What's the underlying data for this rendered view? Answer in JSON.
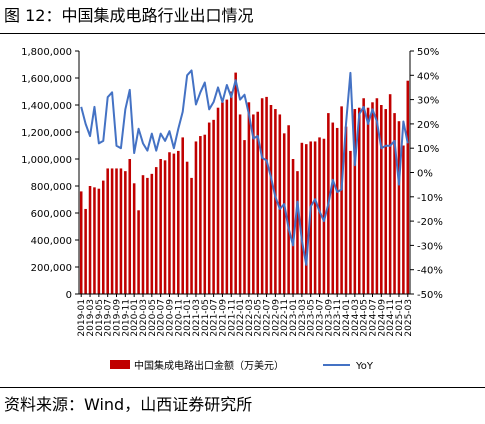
{
  "figure_title": "图 12：中国集成电路行业出口情况",
  "source": "资料来源：Wind，山西证券研究所",
  "colors": {
    "bar": "#c00000",
    "line": "#4472c4",
    "axis": "#000000"
  },
  "chart_data": {
    "type": "bar+line",
    "title": "",
    "x": [
      "2019-01",
      "2019-02",
      "2019-03",
      "2019-04",
      "2019-05",
      "2019-06",
      "2019-07",
      "2019-08",
      "2019-09",
      "2019-10",
      "2019-11",
      "2019-12",
      "2020-01",
      "2020-02",
      "2020-03",
      "2020-04",
      "2020-05",
      "2020-06",
      "2020-07",
      "2020-08",
      "2020-09",
      "2020-10",
      "2020-11",
      "2020-12",
      "2021-01",
      "2021-02",
      "2021-03",
      "2021-04",
      "2021-05",
      "2021-06",
      "2021-07",
      "2021-08",
      "2021-09",
      "2021-10",
      "2021-11",
      "2021-12",
      "2022-01",
      "2022-02",
      "2022-03",
      "2022-04",
      "2022-05",
      "2022-06",
      "2022-07",
      "2022-08",
      "2022-09",
      "2022-10",
      "2022-11",
      "2022-12",
      "2023-01",
      "2023-02",
      "2023-03",
      "2023-04",
      "2023-05",
      "2023-06",
      "2023-07",
      "2023-08",
      "2023-09",
      "2023-10",
      "2023-11",
      "2023-12",
      "2024-01",
      "2024-02",
      "2024-03",
      "2024-04",
      "2024-05",
      "2024-06",
      "2024-07",
      "2024-08",
      "2024-09",
      "2024-10",
      "2024-11",
      "2024-12",
      "2025-01",
      "2025-02",
      "2025-03"
    ],
    "x_tick_labels": [
      "2019-01",
      "2019-03",
      "2019-05",
      "2019-07",
      "2019-09",
      "2019-11",
      "2020-01",
      "2020-03",
      "2020-05",
      "2020-07",
      "2020-09",
      "2020-11",
      "2021-01",
      "2021-03",
      "2021-05",
      "2021-07",
      "2021-09",
      "2021-11",
      "2022-01",
      "2022-03",
      "2022-05",
      "2022-07",
      "2022-09",
      "2022-11",
      "2023-01",
      "2023-03",
      "2023-05",
      "2023-07",
      "2023-09",
      "2023-11",
      "2024-01",
      "2024-03",
      "2024-05",
      "2024-07",
      "2024-09",
      "2024-11",
      "2025-01",
      "2025-03"
    ],
    "series": [
      {
        "name": "中国集成电路出口金额（万美元）",
        "type": "bar",
        "axis": "left",
        "values": [
          760000,
          630000,
          800000,
          790000,
          780000,
          840000,
          930000,
          930000,
          930000,
          930000,
          910000,
          1000000,
          820000,
          620000,
          880000,
          860000,
          890000,
          940000,
          1000000,
          990000,
          1050000,
          1040000,
          1060000,
          1160000,
          980000,
          860000,
          1130000,
          1170000,
          1180000,
          1270000,
          1290000,
          1380000,
          1420000,
          1440000,
          1500000,
          1640000,
          1330000,
          1140000,
          1420000,
          1330000,
          1350000,
          1450000,
          1460000,
          1400000,
          1370000,
          1330000,
          1190000,
          1250000,
          1000000,
          910000,
          1120000,
          1110000,
          1130000,
          1130000,
          1160000,
          1150000,
          1340000,
          1270000,
          1230000,
          1390000,
          1240000,
          1060000,
          1370000,
          1380000,
          1450000,
          1380000,
          1420000,
          1450000,
          1400000,
          1370000,
          1480000,
          1340000,
          1280000,
          1100000,
          1580000
        ]
      },
      {
        "name": "YoY",
        "type": "line",
        "axis": "right",
        "values": [
          27,
          20,
          15,
          27,
          12,
          13,
          31,
          33,
          11,
          10,
          26,
          34,
          8,
          18,
          12,
          9,
          16,
          9,
          16,
          13,
          17,
          10,
          18,
          25,
          40,
          42,
          28,
          33,
          37,
          26,
          29,
          35,
          29,
          36,
          31,
          38,
          30,
          32,
          24,
          14,
          15,
          6,
          5,
          -2,
          -10,
          -15,
          -13,
          -23,
          -30,
          -12,
          -28,
          -38,
          -14,
          -11,
          -16,
          -20,
          -13,
          -3,
          -8,
          -7,
          20,
          41,
          3,
          24,
          27,
          20,
          26,
          21,
          10,
          11,
          11,
          13,
          -5,
          21,
          12
        ]
      }
    ],
    "y_left": {
      "min": 0,
      "max": 1800000,
      "ticks": [
        "0",
        "200,000",
        "400,000",
        "600,000",
        "800,000",
        "1,000,000",
        "1,200,000",
        "1,400,000",
        "1,600,000",
        "1,800,000"
      ]
    },
    "y_right": {
      "min": -50,
      "max": 50,
      "ticks": [
        "-50%",
        "-40%",
        "-30%",
        "-20%",
        "-10%",
        "0%",
        "10%",
        "20%",
        "30%",
        "40%",
        "50%"
      ]
    },
    "legend": {
      "placement": "bottom",
      "items": [
        "中国集成电路出口金额（万美元）",
        "YoY"
      ]
    },
    "grid": false
  }
}
